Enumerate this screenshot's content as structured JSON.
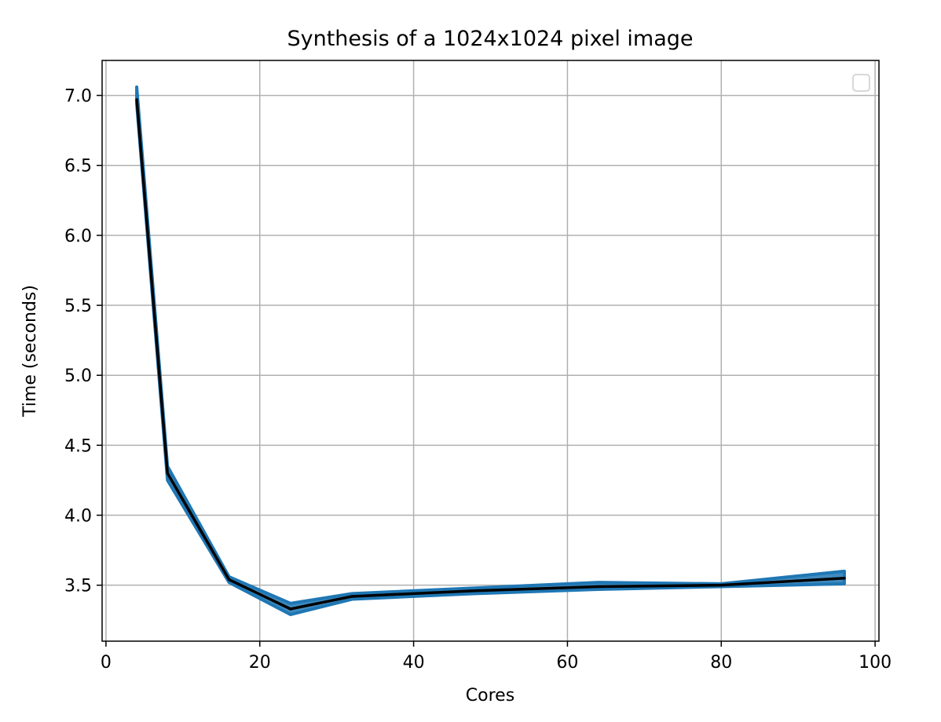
{
  "chart_data": {
    "type": "line",
    "title": "Synthesis of a 1024x1024 pixel image",
    "xlabel": "Cores",
    "ylabel": "Time (seconds)",
    "xlim": [
      -0.5,
      100.5
    ],
    "ylim": [
      3.1,
      7.25
    ],
    "xticks": [
      0,
      20,
      40,
      60,
      80,
      100
    ],
    "yticks": [
      3.5,
      4.0,
      4.5,
      5.0,
      5.5,
      6.0,
      6.5,
      7.0
    ],
    "grid": true,
    "legend": {
      "placement": "top-right",
      "entries": []
    },
    "series": [
      {
        "name": "mean",
        "color": "#000000",
        "x": [
          4,
          8,
          16,
          24,
          32,
          48,
          64,
          80,
          96
        ],
        "y": [
          6.97,
          4.3,
          3.54,
          3.33,
          3.42,
          3.46,
          3.49,
          3.5,
          3.55
        ],
        "band_lower": [
          6.94,
          4.25,
          3.52,
          3.29,
          3.4,
          3.44,
          3.47,
          3.49,
          3.51
        ],
        "band_upper": [
          7.06,
          4.35,
          3.56,
          3.37,
          3.44,
          3.48,
          3.52,
          3.51,
          3.6
        ],
        "band_color": "#1f77b4"
      }
    ]
  }
}
